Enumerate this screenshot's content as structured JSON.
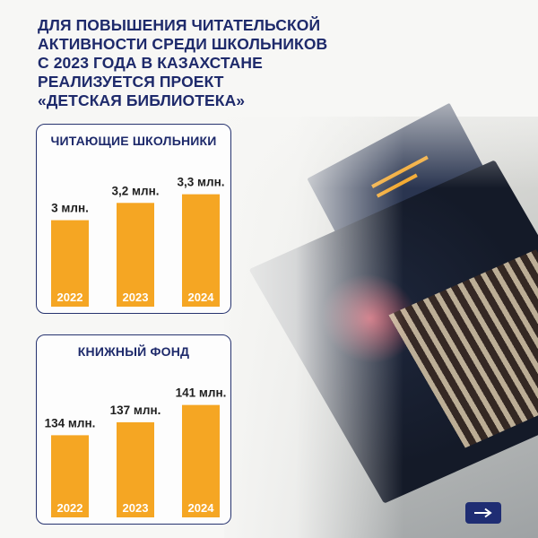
{
  "heading": {
    "lines": [
      "ДЛЯ ПОВЫШЕНИЯ ЧИТАТЕЛЬСКОЙ",
      "АКТИВНОСТИ СРЕДИ ШКОЛЬНИКОВ",
      "С 2023 ГОДА В КАЗАХСТАНЕ",
      "РЕАЛИЗУЕТСЯ ПРОЕКТ"
    ],
    "project": "«ДЕТСКАЯ БИБЛИОТЕКА»"
  },
  "colors": {
    "bar": "#f5a623",
    "title": "#1e2a6b",
    "border": "#26336f",
    "button": "#1f2d73"
  },
  "next_icon": "arrow-right-icon",
  "chart_data": [
    {
      "type": "bar",
      "title": "ЧИТАЮЩИЕ ШКОЛЬНИКИ",
      "categories": [
        "2022",
        "2023",
        "2024"
      ],
      "values": [
        3.0,
        3.2,
        3.3
      ],
      "value_labels": [
        "3 млн.",
        "3,2 млн.",
        "3,3 млн."
      ],
      "unit": "млн.",
      "xlabel": "",
      "ylabel": "",
      "ylim": [
        2.0,
        3.4
      ],
      "grid": false,
      "legend": "none"
    },
    {
      "type": "bar",
      "title": "КНИЖНЫЙ ФОНД",
      "categories": [
        "2022",
        "2023",
        "2024"
      ],
      "values": [
        134,
        137,
        141
      ],
      "value_labels": [
        "134 млн.",
        "137 млн.",
        "141 млн."
      ],
      "unit": "млн.",
      "xlabel": "",
      "ylabel": "",
      "ylim": [
        115,
        143
      ],
      "grid": false,
      "legend": "none"
    }
  ]
}
